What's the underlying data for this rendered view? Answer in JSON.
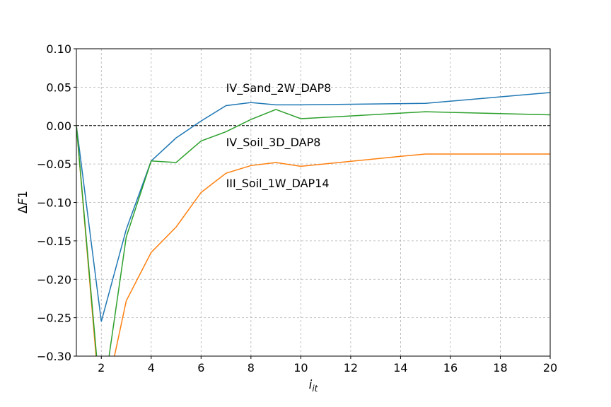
{
  "chart_data": {
    "type": "line",
    "xlabel": "i_it",
    "ylabel": "ΔF1",
    "xlim": [
      1,
      20
    ],
    "ylim": [
      -0.3,
      0.1
    ],
    "grid": true,
    "legend": "none",
    "xticks": [
      2,
      4,
      6,
      8,
      10,
      12,
      14,
      16,
      18,
      20
    ],
    "yticks": [
      0.1,
      0.05,
      0.0,
      -0.05,
      -0.1,
      -0.15,
      -0.2,
      -0.25,
      -0.3
    ],
    "xtick_labels": [
      "2",
      "4",
      "6",
      "8",
      "10",
      "12",
      "14",
      "16",
      "18",
      "20"
    ],
    "ytick_labels": [
      "0.10",
      "0.05",
      "0.00",
      "−0.05",
      "−0.10",
      "−0.15",
      "−0.20",
      "−0.25",
      "−0.30"
    ],
    "reference_line": {
      "y": 0.0,
      "color": "#000000",
      "style": "dashed"
    },
    "series": [
      {
        "color": "#1f77b4",
        "x": [
          1,
          2,
          3,
          4,
          5,
          6,
          7,
          8,
          9,
          10,
          15,
          20
        ],
        "y": [
          0.0,
          -0.255,
          -0.135,
          -0.046,
          -0.016,
          0.006,
          0.026,
          0.03,
          0.027,
          0.027,
          0.029,
          0.043
        ]
      },
      {
        "color": "#ff7f0e",
        "x": [
          1,
          2,
          3,
          4,
          5,
          6,
          7,
          8,
          9,
          10,
          14,
          15,
          20
        ],
        "y": [
          0.0,
          -0.38,
          -0.228,
          -0.165,
          -0.132,
          -0.087,
          -0.062,
          -0.052,
          -0.048,
          -0.053,
          -0.04,
          -0.037,
          -0.037
        ]
      },
      {
        "color": "#2ca02c",
        "x": [
          1,
          2,
          3,
          4,
          5,
          6,
          7,
          8,
          9,
          10,
          15,
          20
        ],
        "y": [
          0.0,
          -0.37,
          -0.145,
          -0.046,
          -0.048,
          -0.02,
          -0.008,
          0.008,
          0.021,
          0.009,
          0.018,
          0.014
        ]
      }
    ],
    "annotations": [
      {
        "text": "IV_Sand_2W_DAP8",
        "x": 7.0,
        "y": 0.044
      },
      {
        "text": "IV_Soil_3D_DAP8",
        "x": 7.0,
        "y": -0.027
      },
      {
        "text": "III_Soil_1W_DAP14",
        "x": 7.0,
        "y": -0.08
      }
    ]
  }
}
